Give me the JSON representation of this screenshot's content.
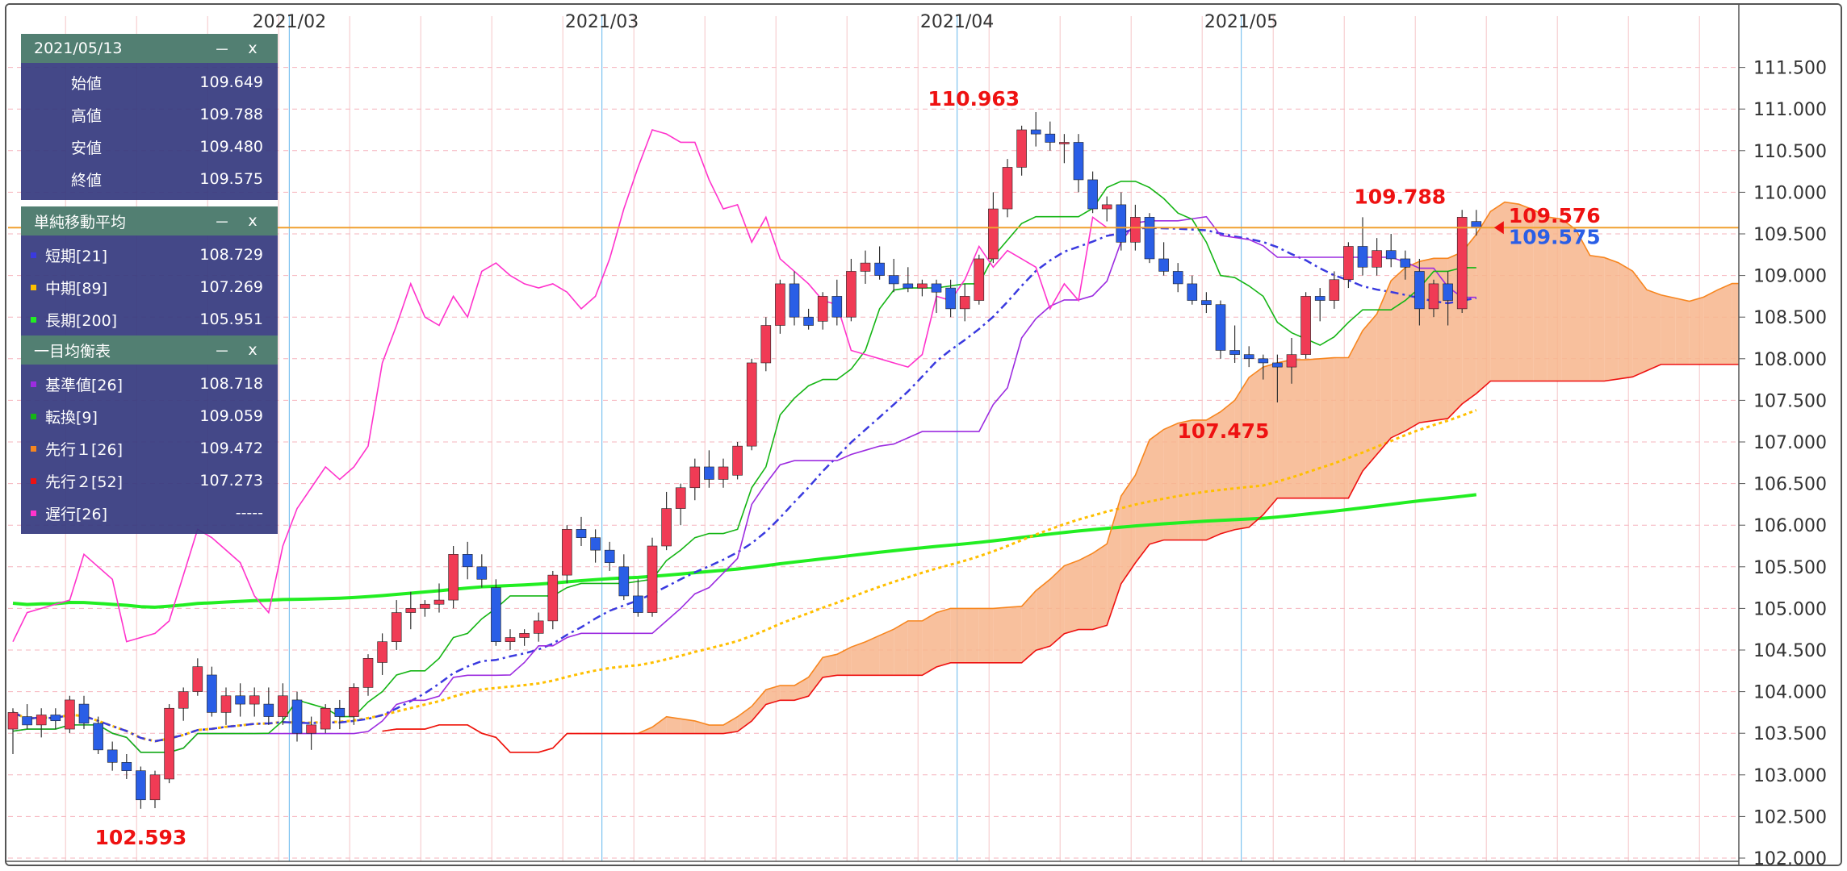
{
  "colors": {
    "up": "#f03b55",
    "down": "#2a5ee6",
    "kumo": "#f7b58c",
    "kumo_bear": "#e8e8e8",
    "ma_short": "#3a3adf",
    "ma_mid": "#ffbf00",
    "ma_long": "#22ee22",
    "tenkan": "#15b515",
    "kijun": "#9c2ce0",
    "senkou1": "#f7861f",
    "senkou2": "#ee1111",
    "chikou": "#ff33cc",
    "price_line": "#f0a030",
    "panel_bg": "#34387e",
    "panel_header": "#527f72"
  },
  "chart_data": {
    "type": "candlestick",
    "x_labels": [
      "2021/02",
      "2021/03",
      "2021/04",
      "2021/05"
    ],
    "y_ticks": [
      "111.500",
      "111.000",
      "110.500",
      "110.000",
      "109.500",
      "109.000",
      "108.500",
      "108.000",
      "107.500",
      "107.000",
      "106.500",
      "106.000",
      "105.500",
      "105.000",
      "104.500",
      "104.000",
      "103.500",
      "103.000",
      "102.500",
      "102.000"
    ],
    "ylim": [
      101.95,
      111.85
    ],
    "candles": [
      [
        103.55,
        103.8,
        103.25,
        103.75
      ],
      [
        103.7,
        103.85,
        103.55,
        103.6
      ],
      [
        103.6,
        103.8,
        103.45,
        103.72
      ],
      [
        103.72,
        103.8,
        103.55,
        103.65
      ],
      [
        103.55,
        103.95,
        103.5,
        103.9
      ],
      [
        103.85,
        103.95,
        103.55,
        103.62
      ],
      [
        103.62,
        103.7,
        103.25,
        103.3
      ],
      [
        103.3,
        103.4,
        103.05,
        103.15
      ],
      [
        103.15,
        103.25,
        102.95,
        103.05
      ],
      [
        103.05,
        103.1,
        102.593,
        102.7
      ],
      [
        102.7,
        103.05,
        102.6,
        103.0
      ],
      [
        102.95,
        103.85,
        102.9,
        103.8
      ],
      [
        103.8,
        104.05,
        103.65,
        104.0
      ],
      [
        104.0,
        104.4,
        103.95,
        104.3
      ],
      [
        104.2,
        104.3,
        103.7,
        103.75
      ],
      [
        103.75,
        104.05,
        103.6,
        103.95
      ],
      [
        103.95,
        104.1,
        103.7,
        103.85
      ],
      [
        103.85,
        104.05,
        103.7,
        103.95
      ],
      [
        103.85,
        104.05,
        103.6,
        103.7
      ],
      [
        103.7,
        104.1,
        103.6,
        103.95
      ],
      [
        103.9,
        104.0,
        103.4,
        103.5
      ],
      [
        103.5,
        103.7,
        103.3,
        103.6
      ],
      [
        103.55,
        103.85,
        103.5,
        103.8
      ],
      [
        103.8,
        103.9,
        103.55,
        103.7
      ],
      [
        103.7,
        104.1,
        103.6,
        104.05
      ],
      [
        104.05,
        104.45,
        103.95,
        104.4
      ],
      [
        104.35,
        104.7,
        104.2,
        104.6
      ],
      [
        104.6,
        105.1,
        104.5,
        104.95
      ],
      [
        104.95,
        105.2,
        104.75,
        105.0
      ],
      [
        105.0,
        105.1,
        104.9,
        105.05
      ],
      [
        105.05,
        105.3,
        104.95,
        105.1
      ],
      [
        105.1,
        105.75,
        105.0,
        105.65
      ],
      [
        105.65,
        105.8,
        105.35,
        105.5
      ],
      [
        105.5,
        105.65,
        105.25,
        105.35
      ],
      [
        105.25,
        105.35,
        104.55,
        104.6
      ],
      [
        104.6,
        104.75,
        104.5,
        104.65
      ],
      [
        104.65,
        104.75,
        104.55,
        104.7
      ],
      [
        104.7,
        104.95,
        104.6,
        104.85
      ],
      [
        104.85,
        105.45,
        104.75,
        105.4
      ],
      [
        105.4,
        106.0,
        105.3,
        105.95
      ],
      [
        105.95,
        106.1,
        105.75,
        105.85
      ],
      [
        105.85,
        105.95,
        105.55,
        105.7
      ],
      [
        105.7,
        105.8,
        105.45,
        105.55
      ],
      [
        105.5,
        105.65,
        105.1,
        105.15
      ],
      [
        105.15,
        105.35,
        104.9,
        104.95
      ],
      [
        104.95,
        105.85,
        104.9,
        105.75
      ],
      [
        105.75,
        106.4,
        105.7,
        106.2
      ],
      [
        106.2,
        106.5,
        106.0,
        106.45
      ],
      [
        106.45,
        106.8,
        106.3,
        106.7
      ],
      [
        106.7,
        106.9,
        106.45,
        106.55
      ],
      [
        106.55,
        106.8,
        106.45,
        106.7
      ],
      [
        106.6,
        107.0,
        106.55,
        106.95
      ],
      [
        106.95,
        108.0,
        106.9,
        107.95
      ],
      [
        107.95,
        108.5,
        107.85,
        108.4
      ],
      [
        108.4,
        108.95,
        108.3,
        108.9
      ],
      [
        108.9,
        109.05,
        108.4,
        108.5
      ],
      [
        108.5,
        108.6,
        108.35,
        108.4
      ],
      [
        108.45,
        108.8,
        108.35,
        108.75
      ],
      [
        108.75,
        108.95,
        108.4,
        108.5
      ],
      [
        108.5,
        109.2,
        108.45,
        109.05
      ],
      [
        109.05,
        109.3,
        108.9,
        109.15
      ],
      [
        109.15,
        109.35,
        108.95,
        109.0
      ],
      [
        109.0,
        109.2,
        108.8,
        108.9
      ],
      [
        108.9,
        109.1,
        108.8,
        108.85
      ],
      [
        108.85,
        108.95,
        108.75,
        108.9
      ],
      [
        108.9,
        108.95,
        108.55,
        108.8
      ],
      [
        108.85,
        108.95,
        108.5,
        108.6
      ],
      [
        108.6,
        108.9,
        108.45,
        108.75
      ],
      [
        108.7,
        109.25,
        108.65,
        109.2
      ],
      [
        109.2,
        110.0,
        109.15,
        109.8
      ],
      [
        109.8,
        110.4,
        109.7,
        110.3
      ],
      [
        110.3,
        110.8,
        110.2,
        110.75
      ],
      [
        110.75,
        110.963,
        110.55,
        110.7
      ],
      [
        110.7,
        110.85,
        110.5,
        110.6
      ],
      [
        110.6,
        110.7,
        110.35,
        110.6
      ],
      [
        110.6,
        110.7,
        110.0,
        110.15
      ],
      [
        110.15,
        110.25,
        109.75,
        109.8
      ],
      [
        109.8,
        109.95,
        109.65,
        109.85
      ],
      [
        109.85,
        110.0,
        109.3,
        109.4
      ],
      [
        109.4,
        109.85,
        109.3,
        109.7
      ],
      [
        109.7,
        109.75,
        109.15,
        109.2
      ],
      [
        109.2,
        109.4,
        109.0,
        109.05
      ],
      [
        109.05,
        109.15,
        108.8,
        108.9
      ],
      [
        108.9,
        109.0,
        108.65,
        108.7
      ],
      [
        108.7,
        108.8,
        108.55,
        108.65
      ],
      [
        108.65,
        108.7,
        108.0,
        108.1
      ],
      [
        108.1,
        108.4,
        107.95,
        108.05
      ],
      [
        108.05,
        108.15,
        107.9,
        108.0
      ],
      [
        108.0,
        108.05,
        107.75,
        107.95
      ],
      [
        107.95,
        108.05,
        107.475,
        107.9
      ],
      [
        107.9,
        108.25,
        107.7,
        108.05
      ],
      [
        108.05,
        108.8,
        108.0,
        108.75
      ],
      [
        108.75,
        108.85,
        108.45,
        108.7
      ],
      [
        108.7,
        109.05,
        108.6,
        108.95
      ],
      [
        108.95,
        109.4,
        108.85,
        109.35
      ],
      [
        109.35,
        109.7,
        109.0,
        109.1
      ],
      [
        109.1,
        109.45,
        109.0,
        109.3
      ],
      [
        109.3,
        109.5,
        109.1,
        109.2
      ],
      [
        109.2,
        109.3,
        108.95,
        109.1
      ],
      [
        109.05,
        109.2,
        108.4,
        108.6
      ],
      [
        108.6,
        108.95,
        108.5,
        108.9
      ],
      [
        108.9,
        109.05,
        108.4,
        108.7
      ],
      [
        108.6,
        109.788,
        108.55,
        109.7
      ],
      [
        109.649,
        109.788,
        109.48,
        109.575
      ]
    ],
    "markers": [
      {
        "label": "110.963",
        "index": 72,
        "price": 110.963,
        "pos": "left-top"
      },
      {
        "label": "102.593",
        "index": 9,
        "price": 102.593,
        "pos": "bottom"
      },
      {
        "label": "107.475",
        "index": 89,
        "price": 107.475,
        "pos": "left-bottom"
      },
      {
        "label": "109.788",
        "index": 102,
        "price": 109.788,
        "pos": "left-top"
      }
    ],
    "last_labels": [
      {
        "label": "109.576",
        "color": "#ee1111",
        "price": 109.576
      },
      {
        "label": "109.575",
        "color": "#2a5ee6",
        "price": 109.575
      }
    ],
    "price_line": 109.575
  },
  "panels": {
    "ohlc": {
      "title": "2021/05/13",
      "min_label": "－",
      "close_label": "x",
      "rows": [
        {
          "label": "始値",
          "value": "109.649"
        },
        {
          "label": "高値",
          "value": "109.788"
        },
        {
          "label": "安値",
          "value": "109.480"
        },
        {
          "label": "終値",
          "value": "109.575"
        }
      ]
    },
    "sma": {
      "title": "単純移動平均",
      "min_label": "－",
      "close_label": "x",
      "rows": [
        {
          "label": "短期[21]",
          "value": "108.729",
          "color": "#3a3adf"
        },
        {
          "label": "中期[89]",
          "value": "107.269",
          "color": "#ffbf00"
        },
        {
          "label": "長期[200]",
          "value": "105.951",
          "color": "#22ee22"
        }
      ]
    },
    "ichimoku": {
      "title": "一目均衡表",
      "min_label": "－",
      "close_label": "x",
      "rows": [
        {
          "label": "基準値[26]",
          "value": "108.718",
          "color": "#9c2ce0"
        },
        {
          "label": "転換[9]",
          "value": "109.059",
          "color": "#15b515"
        },
        {
          "label": "先行１[26]",
          "value": "109.472",
          "color": "#f7861f"
        },
        {
          "label": "先行２[52]",
          "value": "107.273",
          "color": "#ee1111"
        },
        {
          "label": "遅行[26]",
          "value": "-----",
          "color": "#ff33cc"
        }
      ]
    }
  }
}
